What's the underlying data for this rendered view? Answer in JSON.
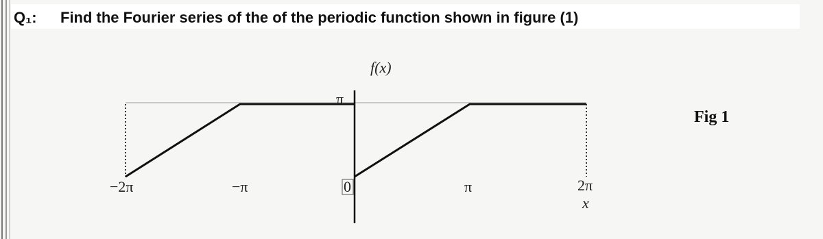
{
  "question": {
    "label": "Q₁:",
    "text": "Find the Fourier series of the of the periodic function shown in figure (1)"
  },
  "figure": {
    "function_label": "f(x)",
    "y_tick": "π",
    "x_ticks": [
      "−2π",
      "−π",
      "0",
      "π",
      "2π"
    ],
    "x_axis_label": "x",
    "caption": "Fig 1"
  }
}
